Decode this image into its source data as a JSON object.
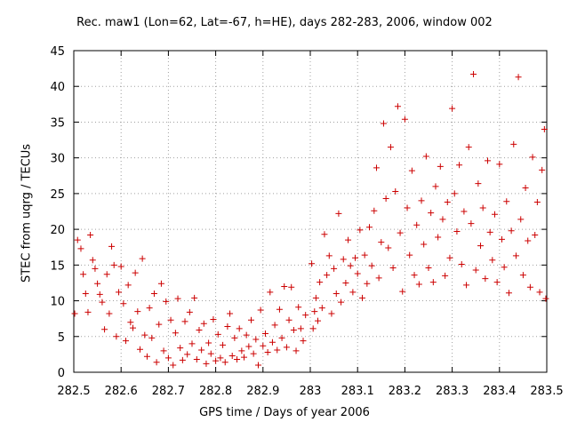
{
  "chart_data": {
    "type": "scatter",
    "title": "Rec. maw1 (Lon=62, Lat=-67, h=HE), days 282-283, 2006, window 002",
    "xlabel": "GPS time / Days of year 2006",
    "ylabel": "STEC from uqrg / TECUs",
    "xlim": [
      282.5,
      283.5
    ],
    "ylim": [
      0,
      45
    ],
    "xticks": [
      282.5,
      282.6,
      282.7,
      282.8,
      282.9,
      283,
      283.1,
      283.2,
      283.3,
      283.4,
      283.5
    ],
    "xtick_labels": [
      "282.5",
      "282.6",
      "282.7",
      "282.8",
      "282.9",
      "283",
      "283.1",
      "283.2",
      "283.3",
      "283.4",
      "283.5"
    ],
    "yticks": [
      0,
      5,
      10,
      15,
      20,
      25,
      30,
      35,
      40,
      45
    ],
    "ytick_labels": [
      "0",
      "5",
      "10",
      "15",
      "20",
      "25",
      "30",
      "35",
      "40",
      "45"
    ],
    "grid": true,
    "marker": "+",
    "color": "#cc0000",
    "series": [
      {
        "points": [
          [
            282.502,
            8.2
          ],
          [
            282.508,
            18.5
          ],
          [
            282.515,
            17.3
          ],
          [
            282.52,
            13.7
          ],
          [
            282.525,
            11.0
          ],
          [
            282.53,
            8.4
          ],
          [
            282.535,
            19.2
          ],
          [
            282.54,
            15.7
          ],
          [
            282.545,
            14.5
          ],
          [
            282.55,
            12.4
          ],
          [
            282.555,
            10.9
          ],
          [
            282.56,
            9.8
          ],
          [
            282.565,
            6.0
          ],
          [
            282.57,
            13.7
          ],
          [
            282.575,
            8.2
          ],
          [
            282.58,
            17.6
          ],
          [
            282.585,
            15.0
          ],
          [
            282.59,
            5.0
          ],
          [
            282.595,
            11.2
          ],
          [
            282.6,
            14.8
          ],
          [
            282.605,
            9.6
          ],
          [
            282.61,
            4.4
          ],
          [
            282.615,
            12.2
          ],
          [
            282.62,
            7.0
          ],
          [
            282.625,
            6.2
          ],
          [
            282.63,
            13.9
          ],
          [
            282.635,
            8.5
          ],
          [
            282.64,
            3.2
          ],
          [
            282.645,
            15.9
          ],
          [
            282.65,
            5.2
          ],
          [
            282.655,
            2.2
          ],
          [
            282.66,
            9.0
          ],
          [
            282.665,
            4.8
          ],
          [
            282.67,
            11.0
          ],
          [
            282.675,
            1.4
          ],
          [
            282.68,
            6.7
          ],
          [
            282.685,
            12.4
          ],
          [
            282.69,
            3.0
          ],
          [
            282.695,
            9.9
          ],
          [
            282.7,
            2.0
          ],
          [
            282.705,
            7.3
          ],
          [
            282.71,
            1.0
          ],
          [
            282.715,
            5.5
          ],
          [
            282.72,
            10.3
          ],
          [
            282.725,
            3.4
          ],
          [
            282.73,
            1.7
          ],
          [
            282.735,
            7.1
          ],
          [
            282.74,
            2.5
          ],
          [
            282.745,
            8.4
          ],
          [
            282.75,
            4.0
          ],
          [
            282.755,
            10.4
          ],
          [
            282.76,
            1.8
          ],
          [
            282.765,
            5.9
          ],
          [
            282.77,
            3.1
          ],
          [
            282.775,
            6.8
          ],
          [
            282.78,
            1.2
          ],
          [
            282.785,
            4.1
          ],
          [
            282.79,
            2.6
          ],
          [
            282.795,
            7.4
          ],
          [
            282.8,
            1.6
          ],
          [
            282.805,
            5.3
          ],
          [
            282.81,
            2.0
          ],
          [
            282.815,
            3.8
          ],
          [
            282.82,
            1.4
          ],
          [
            282.825,
            6.4
          ],
          [
            282.83,
            8.2
          ],
          [
            282.835,
            2.3
          ],
          [
            282.84,
            4.8
          ],
          [
            282.845,
            1.8
          ],
          [
            282.85,
            6.1
          ],
          [
            282.855,
            3.0
          ],
          [
            282.86,
            2.1
          ],
          [
            282.865,
            5.2
          ],
          [
            282.87,
            3.6
          ],
          [
            282.875,
            7.3
          ],
          [
            282.88,
            2.6
          ],
          [
            282.885,
            4.6
          ],
          [
            282.89,
            1.0
          ],
          [
            282.895,
            8.7
          ],
          [
            282.9,
            3.7
          ],
          [
            282.905,
            5.4
          ],
          [
            282.91,
            2.8
          ],
          [
            282.915,
            11.2
          ],
          [
            282.92,
            4.2
          ],
          [
            282.925,
            6.6
          ],
          [
            282.93,
            3.1
          ],
          [
            282.935,
            8.8
          ],
          [
            282.94,
            4.8
          ],
          [
            282.945,
            12.0
          ],
          [
            282.95,
            3.5
          ],
          [
            282.955,
            7.3
          ],
          [
            282.96,
            11.9
          ],
          [
            282.965,
            5.9
          ],
          [
            282.97,
            3.0
          ],
          [
            282.975,
            9.1
          ],
          [
            282.98,
            6.1
          ],
          [
            282.985,
            4.4
          ],
          [
            282.99,
            8.0
          ],
          [
            283.003,
            15.2
          ],
          [
            283.006,
            6.1
          ],
          [
            283.009,
            8.5
          ],
          [
            283.012,
            10.4
          ],
          [
            283.016,
            7.2
          ],
          [
            283.02,
            12.6
          ],
          [
            283.025,
            9.0
          ],
          [
            283.03,
            19.3
          ],
          [
            283.035,
            13.6
          ],
          [
            283.04,
            16.3
          ],
          [
            283.045,
            8.2
          ],
          [
            283.05,
            14.5
          ],
          [
            283.055,
            11.0
          ],
          [
            283.06,
            22.2
          ],
          [
            283.065,
            9.8
          ],
          [
            283.07,
            15.8
          ],
          [
            283.075,
            12.5
          ],
          [
            283.08,
            18.5
          ],
          [
            283.085,
            14.9
          ],
          [
            283.09,
            11.2
          ],
          [
            283.095,
            16.0
          ],
          [
            283.1,
            13.8
          ],
          [
            283.105,
            19.9
          ],
          [
            283.11,
            10.4
          ],
          [
            283.115,
            16.4
          ],
          [
            283.12,
            12.4
          ],
          [
            283.125,
            20.3
          ],
          [
            283.13,
            14.9
          ],
          [
            283.135,
            22.6
          ],
          [
            283.14,
            28.6
          ],
          [
            283.145,
            13.2
          ],
          [
            283.15,
            18.2
          ],
          [
            283.155,
            34.8
          ],
          [
            283.16,
            24.3
          ],
          [
            283.165,
            17.4
          ],
          [
            283.17,
            31.5
          ],
          [
            283.175,
            14.6
          ],
          [
            283.18,
            25.3
          ],
          [
            283.185,
            37.2
          ],
          [
            283.19,
            19.5
          ],
          [
            283.195,
            11.3
          ],
          [
            283.2,
            35.4
          ],
          [
            283.205,
            23.0
          ],
          [
            283.21,
            16.4
          ],
          [
            283.215,
            28.2
          ],
          [
            283.22,
            13.6
          ],
          [
            283.225,
            20.6
          ],
          [
            283.23,
            12.3
          ],
          [
            283.235,
            24.0
          ],
          [
            283.24,
            17.9
          ],
          [
            283.245,
            30.2
          ],
          [
            283.25,
            14.6
          ],
          [
            283.255,
            22.3
          ],
          [
            283.26,
            12.6
          ],
          [
            283.265,
            26.0
          ],
          [
            283.27,
            18.9
          ],
          [
            283.275,
            28.8
          ],
          [
            283.28,
            21.4
          ],
          [
            283.285,
            13.5
          ],
          [
            283.29,
            23.8
          ],
          [
            283.295,
            16.0
          ],
          [
            283.3,
            36.9
          ],
          [
            283.305,
            25.0
          ],
          [
            283.31,
            19.7
          ],
          [
            283.315,
            29.0
          ],
          [
            283.32,
            15.1
          ],
          [
            283.325,
            22.5
          ],
          [
            283.33,
            12.2
          ],
          [
            283.335,
            31.5
          ],
          [
            283.34,
            20.8
          ],
          [
            283.345,
            41.7
          ],
          [
            283.35,
            14.3
          ],
          [
            283.355,
            26.4
          ],
          [
            283.36,
            17.7
          ],
          [
            283.365,
            23.0
          ],
          [
            283.37,
            13.1
          ],
          [
            283.375,
            29.6
          ],
          [
            283.38,
            19.6
          ],
          [
            283.385,
            15.7
          ],
          [
            283.39,
            22.1
          ],
          [
            283.395,
            12.6
          ],
          [
            283.4,
            29.1
          ],
          [
            283.405,
            18.6
          ],
          [
            283.41,
            14.7
          ],
          [
            283.415,
            23.9
          ],
          [
            283.42,
            11.1
          ],
          [
            283.425,
            19.8
          ],
          [
            283.43,
            31.9
          ],
          [
            283.435,
            16.3
          ],
          [
            283.44,
            41.3
          ],
          [
            283.445,
            21.4
          ],
          [
            283.45,
            13.6
          ],
          [
            283.455,
            25.8
          ],
          [
            283.46,
            18.4
          ],
          [
            283.465,
            11.9
          ],
          [
            283.47,
            30.1
          ],
          [
            283.475,
            19.2
          ],
          [
            283.48,
            23.8
          ],
          [
            283.485,
            11.2
          ],
          [
            283.49,
            28.3
          ],
          [
            283.495,
            34.0
          ],
          [
            283.498,
            10.3
          ]
        ]
      }
    ]
  }
}
